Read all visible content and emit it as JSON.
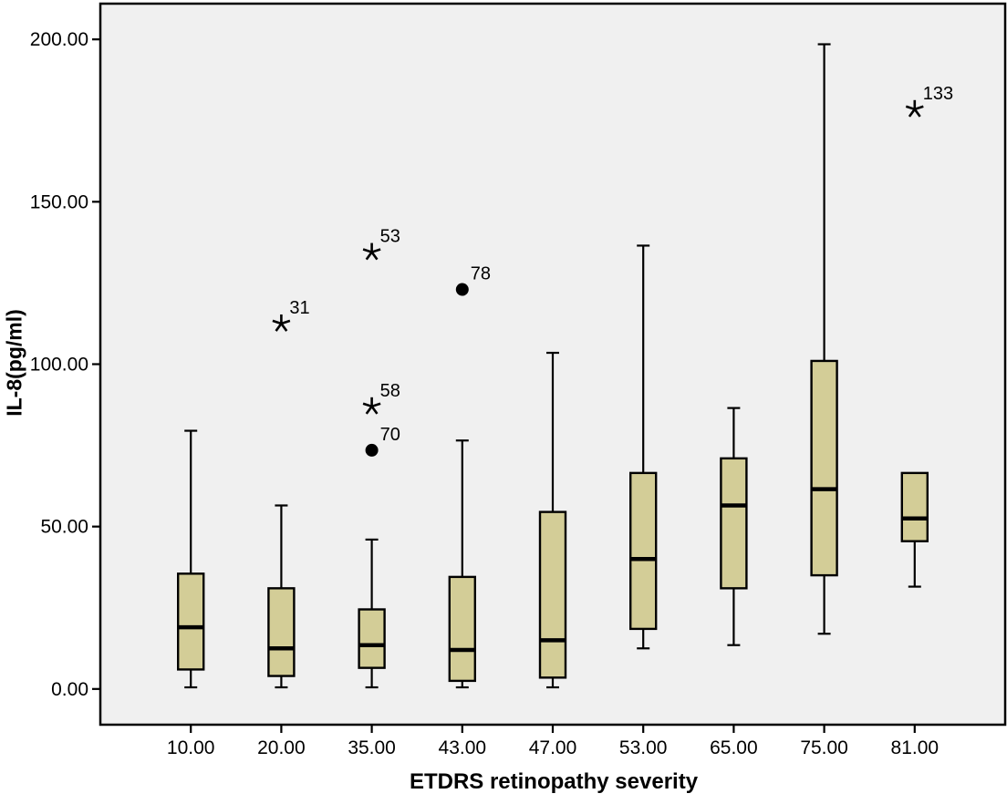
{
  "chart_data": {
    "type": "boxplot",
    "title": "",
    "xlabel": "ETDRS retinopathy severity",
    "ylabel": "IL-8(pg/ml)",
    "categories": [
      "10.00",
      "20.00",
      "35.00",
      "43.00",
      "47.00",
      "53.00",
      "65.00",
      "75.00",
      "81.00"
    ],
    "y_ticks": [
      "0.00",
      "50.00",
      "100.00",
      "150.00",
      "200.00"
    ],
    "ylim": [
      -11,
      211
    ],
    "grid": false,
    "legend": "none",
    "boxes": [
      {
        "category": "10.00",
        "whisker_low": 0.5,
        "q1": 6,
        "median": 19,
        "q3": 35.5,
        "whisker_high": 79.5
      },
      {
        "category": "20.00",
        "whisker_low": 0.5,
        "q1": 4,
        "median": 12.5,
        "q3": 31,
        "whisker_high": 56.5
      },
      {
        "category": "35.00",
        "whisker_low": 0.5,
        "q1": 6.5,
        "median": 13.5,
        "q3": 24.5,
        "whisker_high": 46
      },
      {
        "category": "43.00",
        "whisker_low": 0.5,
        "q1": 2.5,
        "median": 12,
        "q3": 34.5,
        "whisker_high": 76.5
      },
      {
        "category": "47.00",
        "whisker_low": 0.5,
        "q1": 3.5,
        "median": 15,
        "q3": 54.5,
        "whisker_high": 103.5
      },
      {
        "category": "53.00",
        "whisker_low": 12.5,
        "q1": 18.5,
        "median": 40,
        "q3": 66.5,
        "whisker_high": 136.5
      },
      {
        "category": "65.00",
        "whisker_low": 13.5,
        "q1": 31,
        "median": 56.5,
        "q3": 71,
        "whisker_high": 86.5
      },
      {
        "category": "75.00",
        "whisker_low": 17,
        "q1": 35,
        "median": 61.5,
        "q3": 101,
        "whisker_high": 198.5
      },
      {
        "category": "81.00",
        "whisker_low": 31.5,
        "q1": 45.5,
        "median": 52.5,
        "q3": 66.5,
        "whisker_high": 66.5
      }
    ],
    "outliers": [
      {
        "category": "20.00",
        "value": 112.5,
        "label": "31",
        "marker": "asterisk-extreme"
      },
      {
        "category": "35.00",
        "value": 134.5,
        "label": "53",
        "marker": "asterisk-extreme"
      },
      {
        "category": "35.00",
        "value": 87,
        "label": "58",
        "marker": "asterisk-extreme"
      },
      {
        "category": "35.00",
        "value": 73.5,
        "label": "70",
        "marker": "circle-outlier"
      },
      {
        "category": "43.00",
        "value": 123,
        "label": "78",
        "marker": "circle-outlier"
      },
      {
        "category": "81.00",
        "value": 178.5,
        "label": "133",
        "marker": "asterisk-extreme"
      }
    ],
    "colors": {
      "box_fill": "#d3cd97",
      "plot_bg": "#f0f0f0",
      "line": "#000000",
      "page_bg": "#ffffff"
    }
  }
}
